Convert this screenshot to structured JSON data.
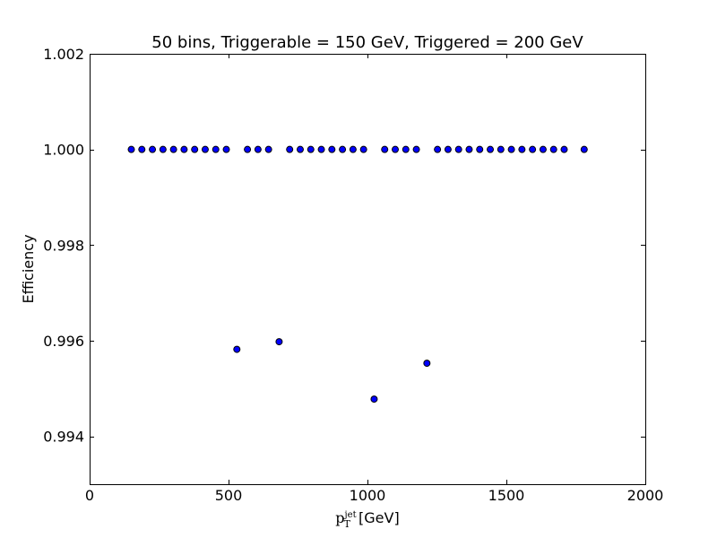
{
  "chart_data": {
    "type": "scatter",
    "title": "50 bins, Triggerable = 150 GeV, Triggered = 200 GeV",
    "xlabel_main": "p",
    "xlabel_sub": "T",
    "xlabel_sup": "jet",
    "xlabel_unit": " [GeV]",
    "ylabel": "Efficiency",
    "xlim": [
      0,
      2000
    ],
    "ylim": [
      0.993,
      1.002
    ],
    "x_ticks": [
      0,
      500,
      1000,
      1500,
      2000
    ],
    "x_tick_labels": [
      "0",
      "500",
      "1000",
      "1500",
      "2000"
    ],
    "y_ticks": [
      0.994,
      0.996,
      0.998,
      1.0,
      1.002
    ],
    "y_tick_labels": [
      "0.994",
      "0.996",
      "0.998",
      "1.000",
      "1.002"
    ],
    "grid": false,
    "marker_color": "#0000ff",
    "x": [
      150,
      188,
      226,
      264,
      302,
      340,
      378,
      416,
      454,
      492,
      530,
      568,
      606,
      644,
      682,
      720,
      758,
      796,
      834,
      872,
      910,
      948,
      986,
      1024,
      1062,
      1100,
      1138,
      1176,
      1214,
      1252,
      1290,
      1328,
      1366,
      1404,
      1442,
      1480,
      1518,
      1556,
      1594,
      1632,
      1670,
      1708,
      1780
    ],
    "y": [
      1.0,
      1.0,
      1.0,
      1.0,
      1.0,
      1.0,
      1.0,
      1.0,
      1.0,
      1.0,
      0.99582,
      1.0,
      1.0,
      1.0,
      0.99598,
      1.0,
      1.0,
      1.0,
      1.0,
      1.0,
      1.0,
      1.0,
      1.0,
      0.99478,
      1.0,
      1.0,
      1.0,
      1.0,
      0.99553,
      1.0,
      1.0,
      1.0,
      1.0,
      1.0,
      1.0,
      1.0,
      1.0,
      1.0,
      1.0,
      1.0,
      1.0,
      1.0,
      1.0
    ]
  }
}
